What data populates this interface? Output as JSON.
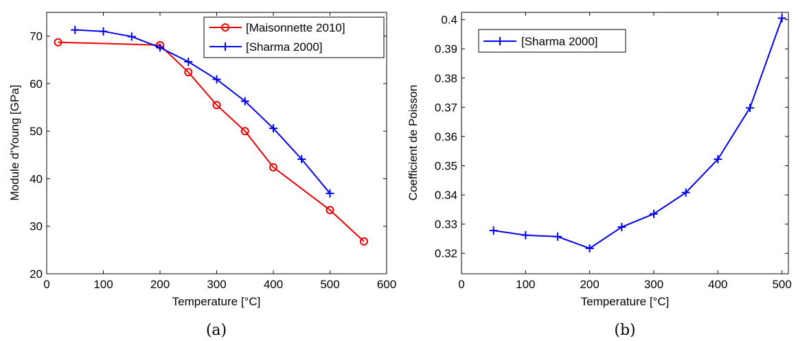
{
  "colors": {
    "red": "#ee0000",
    "blue": "#0000ee",
    "axis": "#000000"
  },
  "chart_data": [
    {
      "type": "line",
      "caption": "(a)",
      "xlabel": "Temperature [°C]",
      "ylabel": "Module d'Young [GPa]",
      "xlim": [
        0,
        600
      ],
      "ylim": [
        20,
        75
      ],
      "xticks": [
        0,
        100,
        200,
        300,
        400,
        500,
        600
      ],
      "yticks": [
        20,
        30,
        40,
        50,
        60,
        70
      ],
      "grid": false,
      "legend": "top-right",
      "series": [
        {
          "name": "[Maisonnette 2010]",
          "color": "#ee0000",
          "marker": "circle",
          "x": [
            20,
            200,
            250,
            300,
            350,
            400,
            500,
            560
          ],
          "y": [
            68.7,
            68.1,
            62.4,
            55.5,
            50.0,
            42.4,
            33.4,
            26.8
          ]
        },
        {
          "name": "[Sharma 2000]",
          "color": "#0000ee",
          "marker": "plus",
          "x": [
            50,
            100,
            150,
            200,
            250,
            300,
            350,
            400,
            450,
            500
          ],
          "y": [
            71.3,
            71.0,
            69.9,
            67.6,
            64.6,
            60.9,
            56.3,
            50.6,
            44.1,
            36.9
          ]
        }
      ]
    },
    {
      "type": "line",
      "caption": "(b)",
      "xlabel": "Temperature [°C]",
      "ylabel": "Coefficient de Poisson",
      "xlim": [
        0,
        510
      ],
      "ylim": [
        0.313,
        0.4025
      ],
      "xticks": [
        0,
        100,
        200,
        300,
        400,
        500
      ],
      "yticks": [
        0.32,
        0.33,
        0.34,
        0.35,
        0.36,
        0.37,
        0.38,
        0.39,
        0.4
      ],
      "grid": false,
      "legend": "top-left",
      "series": [
        {
          "name": "[Sharma 2000]",
          "color": "#0000ee",
          "marker": "plus",
          "x": [
            50,
            100,
            150,
            200,
            250,
            300,
            350,
            400,
            450,
            500
          ],
          "y": [
            0.3278,
            0.3262,
            0.3257,
            0.3217,
            0.329,
            0.3335,
            0.3408,
            0.3522,
            0.3698,
            0.4005
          ]
        }
      ]
    }
  ]
}
